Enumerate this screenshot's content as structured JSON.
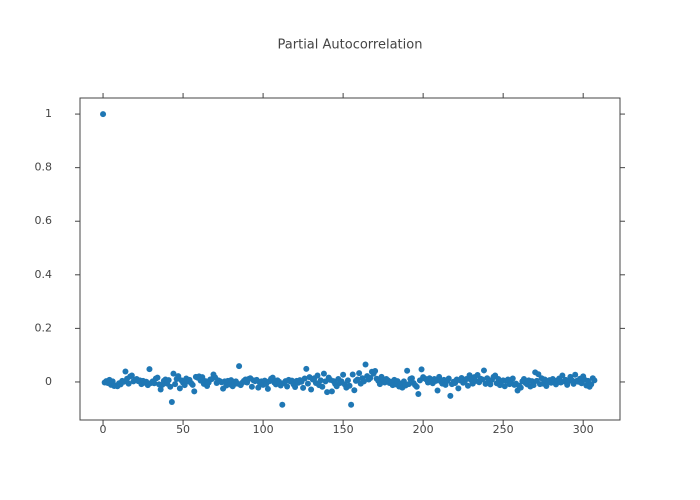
{
  "chart_data": {
    "type": "scatter",
    "title": "Partial Autocorrelation",
    "color": "#1f77b4",
    "xlim": [
      -14.4,
      323
    ],
    "ylim": [
      -0.142,
      1.06
    ],
    "xticks": [
      0,
      50,
      100,
      150,
      200,
      250,
      300
    ],
    "yticks": [
      0,
      0.2,
      0.4,
      0.6,
      0.8,
      1
    ],
    "x": [
      0,
      1,
      2,
      3,
      4,
      5,
      6,
      7,
      8,
      9,
      10,
      11,
      12,
      13,
      14,
      15,
      16,
      17,
      18,
      19,
      20,
      21,
      22,
      23,
      24,
      25,
      26,
      27,
      28,
      29,
      30,
      31,
      32,
      33,
      34,
      35,
      36,
      37,
      38,
      39,
      40,
      41,
      42,
      43,
      44,
      45,
      46,
      47,
      48,
      49,
      50,
      51,
      52,
      53,
      54,
      55,
      56,
      57,
      58,
      59,
      60,
      61,
      62,
      63,
      64,
      65,
      66,
      67,
      68,
      69,
      70,
      71,
      72,
      73,
      74,
      75,
      76,
      77,
      78,
      79,
      80,
      81,
      82,
      83,
      84,
      85,
      86,
      87,
      88,
      89,
      90,
      91,
      92,
      93,
      94,
      95,
      96,
      97,
      98,
      99,
      100,
      101,
      102,
      103,
      104,
      105,
      106,
      107,
      108,
      109,
      110,
      111,
      112,
      113,
      114,
      115,
      116,
      117,
      118,
      119,
      120,
      121,
      122,
      123,
      124,
      125,
      126,
      127,
      128,
      129,
      130,
      131,
      132,
      133,
      134,
      135,
      136,
      137,
      138,
      139,
      140,
      141,
      142,
      143,
      144,
      145,
      146,
      147,
      148,
      149,
      150,
      151,
      152,
      153,
      154,
      155,
      156,
      157,
      158,
      159,
      160,
      161,
      162,
      163,
      164,
      165,
      166,
      167,
      168,
      169,
      170,
      171,
      172,
      173,
      174,
      175,
      176,
      177,
      178,
      179,
      180,
      181,
      182,
      183,
      184,
      185,
      186,
      187,
      188,
      189,
      190,
      191,
      192,
      193,
      194,
      195,
      196,
      197,
      198,
      199,
      200,
      201,
      202,
      203,
      204,
      205,
      206,
      207,
      208,
      209,
      210,
      211,
      212,
      213,
      214,
      215,
      216,
      217,
      218,
      219,
      220,
      221,
      222,
      223,
      224,
      225,
      226,
      227,
      228,
      229,
      230,
      231,
      232,
      233,
      234,
      235,
      236,
      237,
      238,
      239,
      240,
      241,
      242,
      243,
      244,
      245,
      246,
      247,
      248,
      249,
      250,
      251,
      252,
      253,
      254,
      255,
      256,
      257,
      258,
      259,
      260,
      261,
      262,
      263,
      264,
      265,
      266,
      267,
      268,
      269,
      270,
      271,
      272,
      273,
      274,
      275,
      276,
      277,
      278,
      279,
      280,
      281,
      282,
      283,
      284,
      285,
      286,
      287,
      288,
      289,
      290,
      291,
      292,
      293,
      294,
      295,
      296,
      297,
      298,
      299,
      300,
      301,
      302,
      303,
      304,
      305,
      306,
      307
    ],
    "values": [
      1,
      -0.002,
      0.003,
      -0.004,
      0.008,
      -0.011,
      0.002,
      -0.015,
      -0.013,
      -0.016,
      -0.005,
      -0.009,
      0.004,
      0.001,
      0.039,
      0.012,
      -0.006,
      0.021,
      0.024,
      0.002,
      0.008,
      0.011,
      0.003,
      0.006,
      -0.008,
      0.004,
      -0.003,
      0.001,
      -0.012,
      0.048,
      -0.004,
      0.002,
      -0.005,
      0.013,
      0.016,
      -0.009,
      -0.028,
      -0.011,
      0.004,
      0.009,
      -0.006,
      0.007,
      -0.018,
      -0.075,
      0.031,
      -0.008,
      0.011,
      0.022,
      -0.024,
      0.006,
      -0.003,
      -0.012,
      0.013,
      0.002,
      0.008,
      -0.004,
      -0.011,
      -0.035,
      0.019,
      0.016,
      0.021,
      0.005,
      0.018,
      -0.007,
      0.003,
      -0.015,
      -0.002,
      0.009,
      0.011,
      0.028,
      0.017,
      -0.004,
      0.006,
      0.003,
      -0.001,
      -0.025,
      0.002,
      -0.013,
      0.004,
      -0.009,
      0.007,
      -0.016,
      -0.008,
      0.002,
      -0.006,
      0.059,
      -0.012,
      -0.003,
      0.004,
      0.009,
      -0.002,
      0.011,
      0.014,
      -0.018,
      0.006,
      0.003,
      0.008,
      -0.021,
      -0.004,
      0.002,
      -0.011,
      0.005,
      -0.007,
      -0.026,
      0.003,
      0.012,
      0.016,
      -0.002,
      -0.009,
      0.006,
      0.001,
      -0.013,
      -0.085,
      -0.004,
      0.003,
      -0.017,
      0.008,
      0.002,
      0.005,
      -0.009,
      -0.019,
      0.004,
      -0.003,
      0.007,
      0.001,
      -0.022,
      0.013,
      0.049,
      -0.006,
      0.018,
      -0.028,
      0.009,
      0.014,
      -0.004,
      0.024,
      -0.012,
      0.006,
      -0.018,
      0.031,
      0.002,
      -0.038,
      0.016,
      0.008,
      -0.035,
      0.003,
      -0.007,
      -0.016,
      0.011,
      -0.004,
      0.002,
      0.027,
      -0.009,
      -0.021,
      0.006,
      -0.014,
      -0.085,
      0.028,
      -0.031,
      0.004,
      0.009,
      0.033,
      -0.006,
      0.014,
      0.002,
      0.065,
      0.022,
      0.009,
      0.015,
      0.038,
      0.031,
      0.041,
      0.012,
      0.004,
      -0.008,
      0.019,
      0.007,
      -0.002,
      0.011,
      0.006,
      -0.004,
      0.001,
      -0.012,
      0.008,
      -0.009,
      0.003,
      -0.017,
      -0.006,
      -0.021,
      0.002,
      -0.013,
      0.042,
      -0.008,
      0.011,
      0.014,
      -0.004,
      -0.012,
      -0.018,
      -0.045,
      0.006,
      0.047,
      0.018,
      0.013,
      0.009,
      -0.002,
      0.014,
      0.007,
      -0.005,
      0.011,
      0.004,
      -0.032,
      0.019,
      0.002,
      -0.006,
      0.008,
      -0.011,
      0.003,
      0.013,
      -0.052,
      -0.008,
      0.001,
      -0.004,
      0.009,
      -0.024,
      0.006,
      0.015,
      -0.003,
      0.002,
      0.011,
      -0.014,
      0.025,
      0.007,
      -0.006,
      0.018,
      0.004,
      0.026,
      -0.001,
      0.012,
      0.009,
      0.043,
      -0.007,
      0.014,
      0.003,
      -0.009,
      0.008,
      0.019,
      0.024,
      -0.005,
      0.011,
      -0.012,
      0.002,
      0.006,
      -0.016,
      0.004,
      0.009,
      -0.008,
      -0.003,
      0.013,
      -0.011,
      -0.006,
      -0.032,
      -0.014,
      -0.021,
      0.002,
      0.011,
      -0.004,
      -0.009,
      0.006,
      -0.017,
      0.003,
      -0.012,
      0.036,
      0.004,
      0.029,
      -0.008,
      0.014,
      -0.006,
      0.009,
      -0.015,
      0.002,
      0.007,
      -0.003,
      0.011,
      0.004,
      -0.009,
      0.006,
      0.013,
      -0.002,
      0.024,
      0.002,
      0.008,
      -0.011,
      0.003,
      0.019,
      0.006,
      -0.007,
      0.027,
      0.004,
      0.001,
      0.012,
      -0.005,
      0.021,
      0.008,
      -0.013,
      0.004,
      -0.018,
      -0.009,
      0.014,
      0.006
    ]
  }
}
